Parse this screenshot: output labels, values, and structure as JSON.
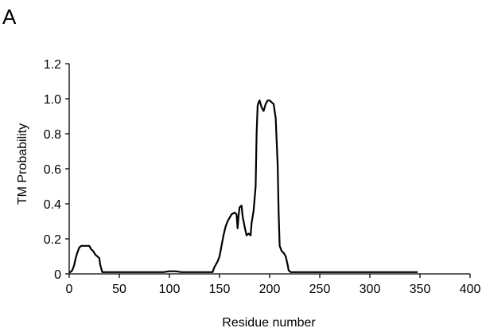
{
  "panel_label": "A",
  "chart_data": {
    "type": "line",
    "title": "",
    "xlabel": "Residue number",
    "ylabel": "TM Probability",
    "xlim": [
      0,
      400
    ],
    "ylim": [
      0,
      1.2
    ],
    "x_ticks": [
      "0",
      "50",
      "100",
      "150",
      "200",
      "250",
      "300",
      "350",
      "400"
    ],
    "y_ticks": [
      "0",
      "0.2",
      "0.4",
      "0.6",
      "0.8",
      "1.0",
      "1.2"
    ],
    "grid": false,
    "legend": "none",
    "line_color": "#000000",
    "series": [
      {
        "x": [
          1,
          3,
          5,
          6,
          8,
          10,
          12,
          20,
          22,
          24,
          26,
          28,
          30,
          31,
          33,
          36,
          60,
          94,
          100,
          106,
          112,
          130,
          143,
          145,
          146,
          148,
          150,
          152,
          154,
          156,
          158,
          160,
          162,
          165,
          167,
          168,
          169,
          170,
          172,
          173,
          175,
          177,
          179,
          181,
          182,
          184,
          186,
          187,
          188,
          189,
          190,
          192,
          194,
          196,
          198,
          200,
          202,
          204,
          205,
          206,
          208,
          209,
          210,
          212,
          214,
          216,
          218,
          219,
          221,
          224,
          240,
          300,
          347
        ],
        "y": [
          0.01,
          0.02,
          0.05,
          0.08,
          0.12,
          0.15,
          0.16,
          0.16,
          0.14,
          0.13,
          0.11,
          0.1,
          0.09,
          0.05,
          0.01,
          0.01,
          0.01,
          0.01,
          0.015,
          0.015,
          0.01,
          0.01,
          0.01,
          0.04,
          0.05,
          0.07,
          0.1,
          0.16,
          0.22,
          0.27,
          0.3,
          0.32,
          0.34,
          0.35,
          0.34,
          0.26,
          0.33,
          0.38,
          0.39,
          0.33,
          0.27,
          0.22,
          0.23,
          0.22,
          0.29,
          0.36,
          0.5,
          0.8,
          0.96,
          0.98,
          0.99,
          0.95,
          0.93,
          0.97,
          0.99,
          0.99,
          0.98,
          0.97,
          0.93,
          0.89,
          0.62,
          0.35,
          0.16,
          0.13,
          0.12,
          0.1,
          0.05,
          0.02,
          0.01,
          0.01,
          0.01,
          0.01,
          0.01
        ]
      }
    ]
  }
}
